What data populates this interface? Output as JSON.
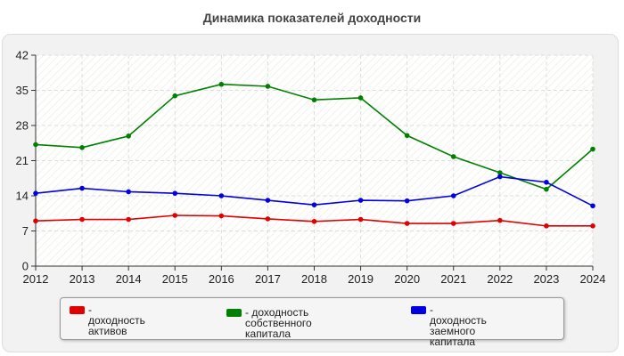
{
  "chart_data": {
    "type": "line",
    "title": "Динамика показателей доходности",
    "xlabel": "",
    "ylabel": "",
    "categories": [
      "2012",
      "2013",
      "2014",
      "2015",
      "2016",
      "2017",
      "2018",
      "2019",
      "2020",
      "2021",
      "2022",
      "2023",
      "2024"
    ],
    "ylim": [
      0,
      42
    ],
    "yticks": [
      "0",
      "7",
      "14",
      "21",
      "28",
      "35",
      "42"
    ],
    "grid": true,
    "legend_position": "bottom",
    "series": [
      {
        "name": "- доходность активов",
        "color": "#e00000",
        "values": [
          9.0,
          9.3,
          9.3,
          10.1,
          10.0,
          9.4,
          8.9,
          9.3,
          8.5,
          8.5,
          9.1,
          8.0,
          8.0
        ]
      },
      {
        "name": "- доходность собственного капитала",
        "color": "#008000",
        "values": [
          24.2,
          23.6,
          25.9,
          33.9,
          36.2,
          35.8,
          33.1,
          33.5,
          26.0,
          21.8,
          18.6,
          15.3,
          23.3
        ]
      },
      {
        "name": "- доходность заемного капитала",
        "color": "#0000e0",
        "values": [
          14.5,
          15.5,
          14.8,
          14.5,
          14.0,
          13.1,
          12.2,
          13.1,
          13.0,
          14.0,
          17.8,
          16.7,
          12.0
        ]
      }
    ]
  },
  "legend": {
    "items": [
      {
        "line1": "- доходность активов",
        "line2": ""
      },
      {
        "line1": "- доходность собственного",
        "line2": "капитала"
      },
      {
        "line1": "- доходность заемного",
        "line2": "капитала"
      }
    ]
  }
}
